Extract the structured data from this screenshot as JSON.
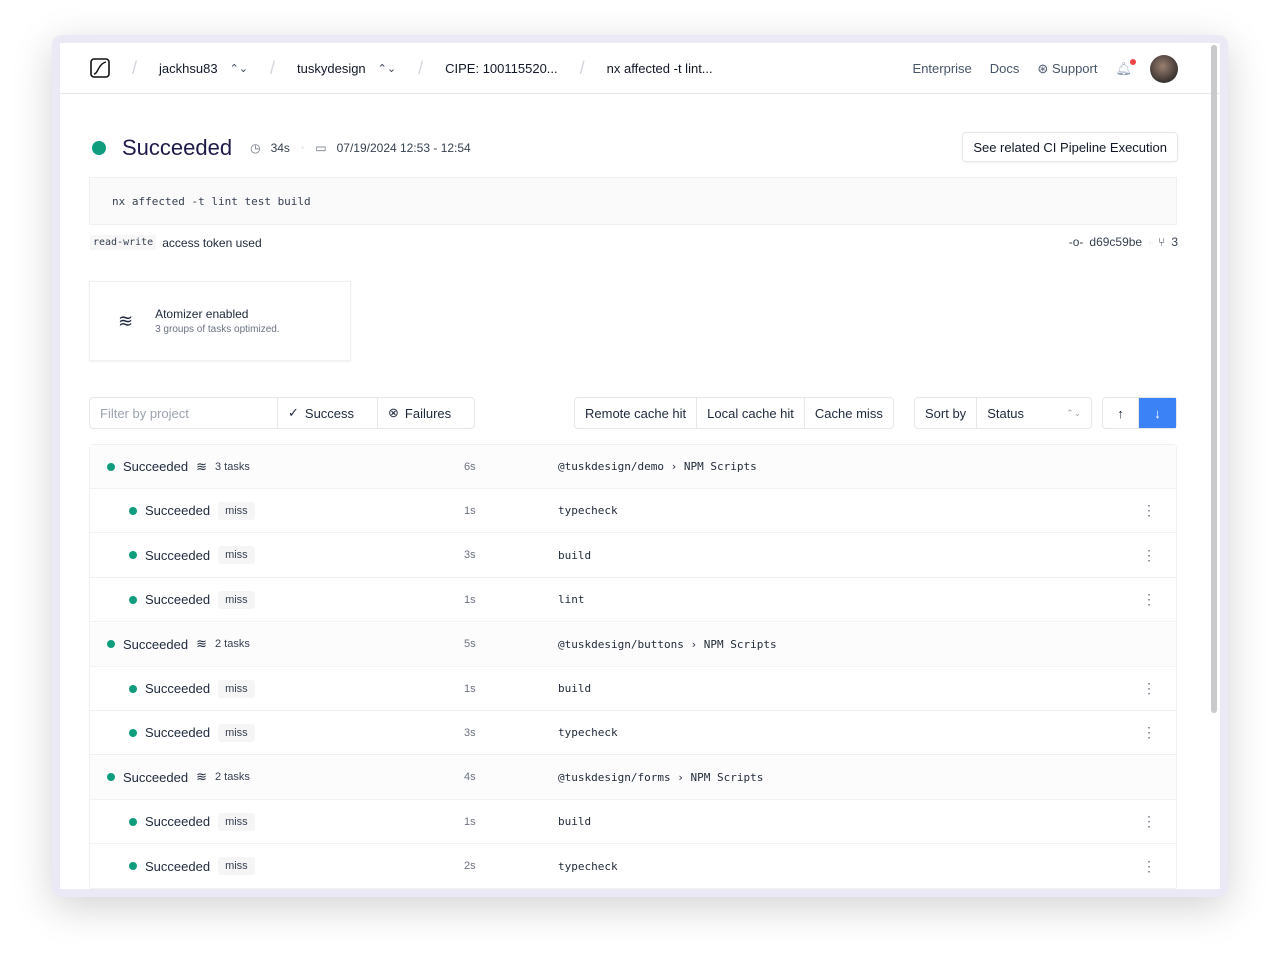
{
  "header": {
    "breadcrumbs": [
      "jackhsu83",
      "tuskydesign",
      "CIPE: 100115520...",
      "nx affected -t lint..."
    ],
    "nav": [
      "Enterprise",
      "Docs",
      "Support"
    ]
  },
  "summary": {
    "status": "Succeeded",
    "duration": "34s",
    "time_range": "07/19/2024 12:53 - 12:54",
    "related_button": "See related CI Pipeline Execution",
    "command": "nx affected -t lint test build",
    "token_badge": "read-write",
    "token_text": "access token used",
    "commit": "d69c59be",
    "branches": "3",
    "status_color": "#0f9d7e"
  },
  "atomizer": {
    "title": "Atomizer enabled",
    "subtitle": "3 groups of tasks optimized."
  },
  "filters": {
    "placeholder": "Filter by project",
    "success": "Success",
    "failures": "Failures",
    "cache": [
      "Remote cache hit",
      "Local cache hit",
      "Cache miss"
    ],
    "sort_label": "Sort by",
    "sort_value": "Status"
  },
  "rows": [
    {
      "type": "group",
      "status": "Succeeded",
      "tasks": "3 tasks",
      "duration": "6s",
      "project": "@tuskdesign/demo",
      "target": "NPM Scripts"
    },
    {
      "type": "task",
      "status": "Succeeded",
      "cache": "miss",
      "duration": "1s",
      "name": "typecheck"
    },
    {
      "type": "task",
      "status": "Succeeded",
      "cache": "miss",
      "duration": "3s",
      "name": "build"
    },
    {
      "type": "task",
      "status": "Succeeded",
      "cache": "miss",
      "duration": "1s",
      "name": "lint"
    },
    {
      "type": "group",
      "status": "Succeeded",
      "tasks": "2 tasks",
      "duration": "5s",
      "project": "@tuskdesign/buttons",
      "target": "NPM Scripts"
    },
    {
      "type": "task",
      "status": "Succeeded",
      "cache": "miss",
      "duration": "1s",
      "name": "build"
    },
    {
      "type": "task",
      "status": "Succeeded",
      "cache": "miss",
      "duration": "3s",
      "name": "typecheck"
    },
    {
      "type": "group",
      "status": "Succeeded",
      "tasks": "2 tasks",
      "duration": "4s",
      "project": "@tuskdesign/forms",
      "target": "NPM Scripts"
    },
    {
      "type": "task",
      "status": "Succeeded",
      "cache": "miss",
      "duration": "1s",
      "name": "build"
    },
    {
      "type": "task",
      "status": "Succeeded",
      "cache": "miss",
      "duration": "2s",
      "name": "typecheck"
    }
  ]
}
